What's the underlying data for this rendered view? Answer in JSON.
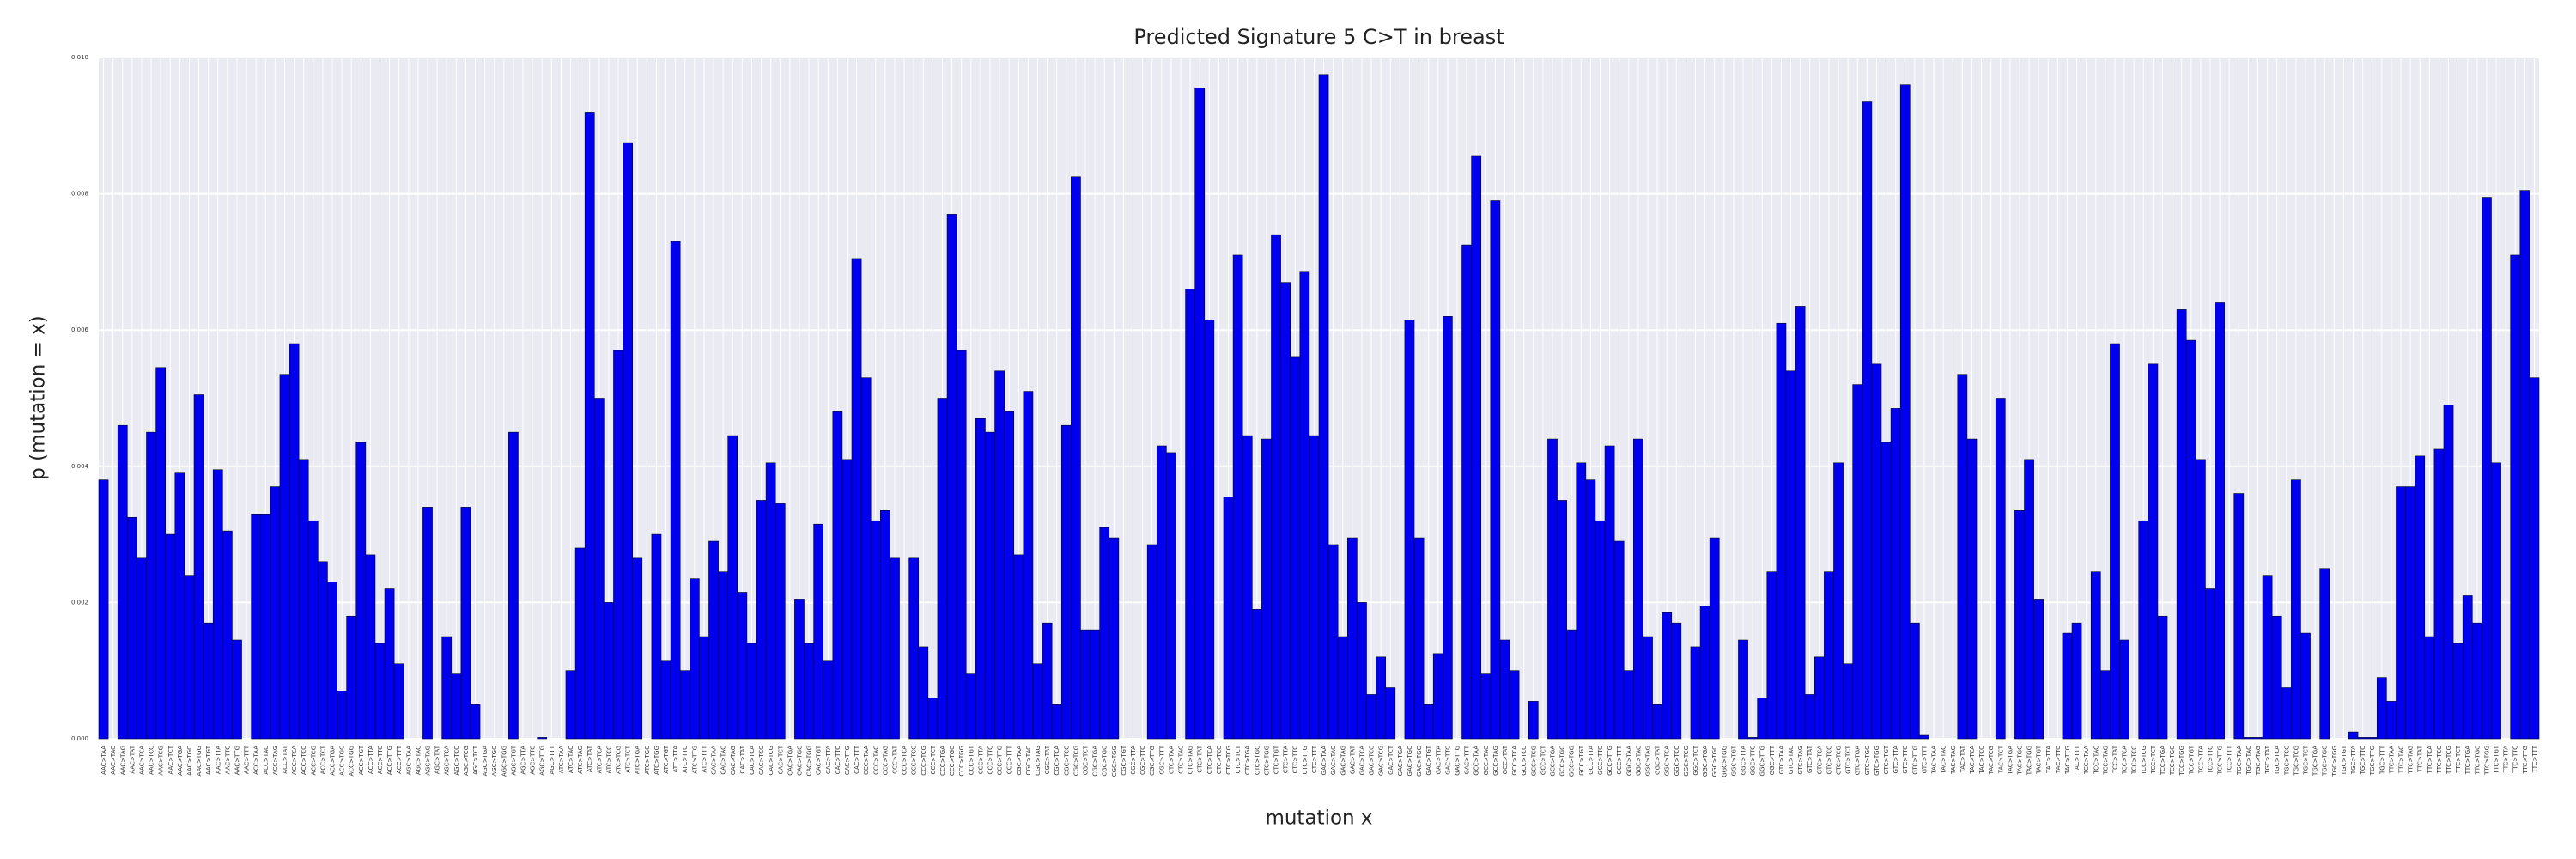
{
  "chart_data": {
    "type": "bar",
    "title": "Predicted Signature 5 C>T in breast",
    "x_label": "mutation x",
    "y_label": "p (mutation = x)",
    "color": "#0000ee",
    "grid": true,
    "ylim": [
      0,
      0.01
    ],
    "yticks": [
      {
        "value": 0,
        "label": "0.000"
      },
      {
        "value": 0.002,
        "label": "0.002"
      },
      {
        "value": 0.004,
        "label": "0.004"
      },
      {
        "value": 0.006,
        "label": "0.006"
      },
      {
        "value": 0.008,
        "label": "0.008"
      },
      {
        "value": 0.01,
        "label": "0.010"
      }
    ],
    "categories": [
      "AAC>TAA",
      "AAC>TAC",
      "AAC>TAG",
      "AAC>TAT",
      "AAC>TCA",
      "AAC>TCC",
      "AAC>TCG",
      "AAC>TCT",
      "AAC>TGA",
      "AAC>TGC",
      "AAC>TGG",
      "AAC>TGT",
      "AAC>TTA",
      "AAC>TTC",
      "AAC>TTG",
      "AAC>TTT",
      "ACC>TAA",
      "ACC>TAC",
      "ACC>TAG",
      "ACC>TAT",
      "ACC>TCA",
      "ACC>TCC",
      "ACC>TCG",
      "ACC>TCT",
      "ACC>TGA",
      "ACC>TGC",
      "ACC>TGG",
      "ACC>TGT",
      "ACC>TTA",
      "ACC>TTC",
      "ACC>TTG",
      "ACC>TTT",
      "AGC>TAA",
      "AGC>TAC",
      "AGC>TAG",
      "AGC>TAT",
      "AGC>TCA",
      "AGC>TCC",
      "AGC>TCG",
      "AGC>TCT",
      "AGC>TGA",
      "AGC>TGC",
      "AGC>TGG",
      "AGC>TGT",
      "AGC>TTA",
      "AGC>TTC",
      "AGC>TTG",
      "AGC>TTT",
      "ATC>TAA",
      "ATC>TAC",
      "ATC>TAG",
      "ATC>TAT",
      "ATC>TCA",
      "ATC>TCC",
      "ATC>TCG",
      "ATC>TCT",
      "ATC>TGA",
      "ATC>TGC",
      "ATC>TGG",
      "ATC>TGT",
      "ATC>TTA",
      "ATC>TTC",
      "ATC>TTG",
      "ATC>TTT",
      "CAC>TAA",
      "CAC>TAC",
      "CAC>TAG",
      "CAC>TAT",
      "CAC>TCA",
      "CAC>TCC",
      "CAC>TCG",
      "CAC>TCT",
      "CAC>TGA",
      "CAC>TGC",
      "CAC>TGG",
      "CAC>TGT",
      "CAC>TTA",
      "CAC>TTC",
      "CAC>TTG",
      "CAC>TTT",
      "CCC>TAA",
      "CCC>TAC",
      "CCC>TAG",
      "CCC>TAT",
      "CCC>TCA",
      "CCC>TCC",
      "CCC>TCG",
      "CCC>TCT",
      "CCC>TGA",
      "CCC>TGC",
      "CCC>TGG",
      "CCC>TGT",
      "CCC>TTA",
      "CCC>TTC",
      "CCC>TTG",
      "CCC>TTT",
      "CGC>TAA",
      "CGC>TAC",
      "CGC>TAG",
      "CGC>TAT",
      "CGC>TCA",
      "CGC>TCC",
      "CGC>TCG",
      "CGC>TCT",
      "CGC>TGA",
      "CGC>TGC",
      "CGC>TGG",
      "CGC>TGT",
      "CGC>TTA",
      "CGC>TTC",
      "CGC>TTG",
      "CGC>TTT",
      "CTC>TAA",
      "CTC>TAC",
      "CTC>TAG",
      "CTC>TAT",
      "CTC>TCA",
      "CTC>TCC",
      "CTC>TCG",
      "CTC>TCT",
      "CTC>TGA",
      "CTC>TGC",
      "CTC>TGG",
      "CTC>TGT",
      "CTC>TTA",
      "CTC>TTC",
      "CTC>TTG",
      "CTC>TTT",
      "GAC>TAA",
      "GAC>TAC",
      "GAC>TAG",
      "GAC>TAT",
      "GAC>TCA",
      "GAC>TCC",
      "GAC>TCG",
      "GAC>TCT",
      "GAC>TGA",
      "GAC>TGC",
      "GAC>TGG",
      "GAC>TGT",
      "GAC>TTA",
      "GAC>TTC",
      "GAC>TTG",
      "GAC>TTT",
      "GCC>TAA",
      "GCC>TAC",
      "GCC>TAG",
      "GCC>TAT",
      "GCC>TCA",
      "GCC>TCC",
      "GCC>TCG",
      "GCC>TCT",
      "GCC>TGA",
      "GCC>TGC",
      "GCC>TGG",
      "GCC>TGT",
      "GCC>TTA",
      "GCC>TTC",
      "GCC>TTG",
      "GCC>TTT",
      "GGC>TAA",
      "GGC>TAC",
      "GGC>TAG",
      "GGC>TAT",
      "GGC>TCA",
      "GGC>TCC",
      "GGC>TCG",
      "GGC>TCT",
      "GGC>TGA",
      "GGC>TGC",
      "GGC>TGG",
      "GGC>TGT",
      "GGC>TTA",
      "GGC>TTC",
      "GGC>TTG",
      "GGC>TTT",
      "GTC>TAA",
      "GTC>TAC",
      "GTC>TAG",
      "GTC>TAT",
      "GTC>TCA",
      "GTC>TCC",
      "GTC>TCG",
      "GTC>TCT",
      "GTC>TGA",
      "GTC>TGC",
      "GTC>TGG",
      "GTC>TGT",
      "GTC>TTA",
      "GTC>TTC",
      "GTC>TTG",
      "GTC>TTT",
      "TAC>TAA",
      "TAC>TAC",
      "TAC>TAG",
      "TAC>TAT",
      "TAC>TCA",
      "TAC>TCC",
      "TAC>TCG",
      "TAC>TCT",
      "TAC>TGA",
      "TAC>TGC",
      "TAC>TGG",
      "TAC>TGT",
      "TAC>TTA",
      "TAC>TTC",
      "TAC>TTG",
      "TAC>TTT",
      "TCC>TAA",
      "TCC>TAC",
      "TCC>TAG",
      "TCC>TAT",
      "TCC>TCA",
      "TCC>TCC",
      "TCC>TCG",
      "TCC>TCT",
      "TCC>TGA",
      "TCC>TGC",
      "TCC>TGG",
      "TCC>TGT",
      "TCC>TTA",
      "TCC>TTC",
      "TCC>TTG",
      "TCC>TTT",
      "TGC>TAA",
      "TGC>TAC",
      "TGC>TAG",
      "TGC>TAT",
      "TGC>TCA",
      "TGC>TCC",
      "TGC>TCG",
      "TGC>TCT",
      "TGC>TGA",
      "TGC>TGC",
      "TGC>TGG",
      "TGC>TGT",
      "TGC>TTA",
      "TGC>TTC",
      "TGC>TTG",
      "TGC>TTT",
      "TTC>TAA",
      "TTC>TAC",
      "TTC>TAG",
      "TTC>TAT",
      "TTC>TCA",
      "TTC>TCC",
      "TTC>TCG",
      "TTC>TCT",
      "TTC>TGA",
      "TTC>TGC",
      "TTC>TGG",
      "TTC>TGT",
      "TTC>TTA",
      "TTC>TTC",
      "TTC>TTG",
      "TTC>TTT"
    ],
    "values": [
      0.0038,
      0,
      0.0046,
      0.00325,
      0.00265,
      0.0045,
      0.00545,
      0.003,
      0.0039,
      0.0024,
      0.00505,
      0.0017,
      0.00395,
      0.00305,
      0.00145,
      0,
      0.0033,
      0.0033,
      0.0037,
      0.00535,
      0.0058,
      0.0041,
      0.0032,
      0.0026,
      0.0023,
      0.0007,
      0.0018,
      0.00435,
      0.0027,
      0.0014,
      0.0022,
      0.0011,
      0,
      0,
      0.0034,
      0,
      0.0015,
      0.00095,
      0.0034,
      0.0005,
      0,
      0,
      0,
      0.0045,
      0,
      0,
      2e-05,
      0,
      0,
      0.001,
      0.0028,
      0.0092,
      0.005,
      0.002,
      0.0057,
      0.00875,
      0.00265,
      0,
      0.003,
      0.00115,
      0.0073,
      0.001,
      0.00235,
      0.0015,
      0.0029,
      0.00245,
      0.00445,
      0.00215,
      0.0014,
      0.0035,
      0.00405,
      0.00345,
      0,
      0.00205,
      0.0014,
      0.00315,
      0.00115,
      0.0048,
      0.0041,
      0.00705,
      0.0053,
      0.0032,
      0.00335,
      0.00265,
      0,
      0.00265,
      0.00135,
      0.0006,
      0.005,
      0.0077,
      0.0057,
      0.00095,
      0.0047,
      0.0045,
      0.0054,
      0.0048,
      0.0027,
      0.0051,
      0.0011,
      0.0017,
      0.0005,
      0.0046,
      0.00825,
      0.0016,
      0.0016,
      0.0031,
      0.00295,
      0,
      0,
      0,
      0.00285,
      0.0043,
      0.0042,
      0,
      0.0066,
      0.00955,
      0.00615,
      0,
      0.00355,
      0.0071,
      0.00445,
      0.0019,
      0.0044,
      0.0074,
      0.0067,
      0.0056,
      0.00685,
      0.00445,
      0.00975,
      0.00285,
      0.0015,
      0.00295,
      0.002,
      0.00065,
      0.0012,
      0.00075,
      0,
      0.00615,
      0.00295,
      0.0005,
      0.00125,
      0.0062,
      0,
      0.00725,
      0.00855,
      0.00095,
      0.0079,
      0.00145,
      0.001,
      0,
      0.00055,
      0,
      0.0044,
      0.0035,
      0.0016,
      0.00405,
      0.0038,
      0.0032,
      0.0043,
      0.0029,
      0.001,
      0.0044,
      0.0015,
      0.0005,
      0.00185,
      0.0017,
      0,
      0.00135,
      0.00195,
      0.00295,
      0,
      0,
      0.00145,
      2e-05,
      0.0006,
      0.00245,
      0.0061,
      0.0054,
      0.00635,
      0.00065,
      0.0012,
      0.00245,
      0.00405,
      0.0011,
      0.0052,
      0.00935,
      0.0055,
      0.00435,
      0.00485,
      0.0096,
      0.0017,
      5e-05,
      0,
      0,
      0,
      0.00535,
      0.0044,
      0,
      0,
      0.005,
      0,
      0.00335,
      0.0041,
      0.00205,
      0,
      0,
      0.00155,
      0.0017,
      0,
      0.00245,
      0.001,
      0.0058,
      0.00145,
      0,
      0.0032,
      0.0055,
      0.0018,
      0,
      0.0063,
      0.00585,
      0.0041,
      0.0022,
      0.0064,
      0,
      0.0036,
      2e-05,
      2e-05,
      0.0024,
      0.0018,
      0.00075,
      0.0038,
      0.00155,
      0,
      0.0025,
      0,
      0,
      0.0001,
      2e-05,
      2e-05,
      0.0009,
      0.00055,
      0.0037,
      0.0037,
      0.00415,
      0.0015,
      0.00425,
      0.0049,
      0.0014,
      0.0021,
      0.0017,
      0.00795,
      0.00405,
      0,
      0.0071,
      0.00805,
      0.0053
    ]
  }
}
